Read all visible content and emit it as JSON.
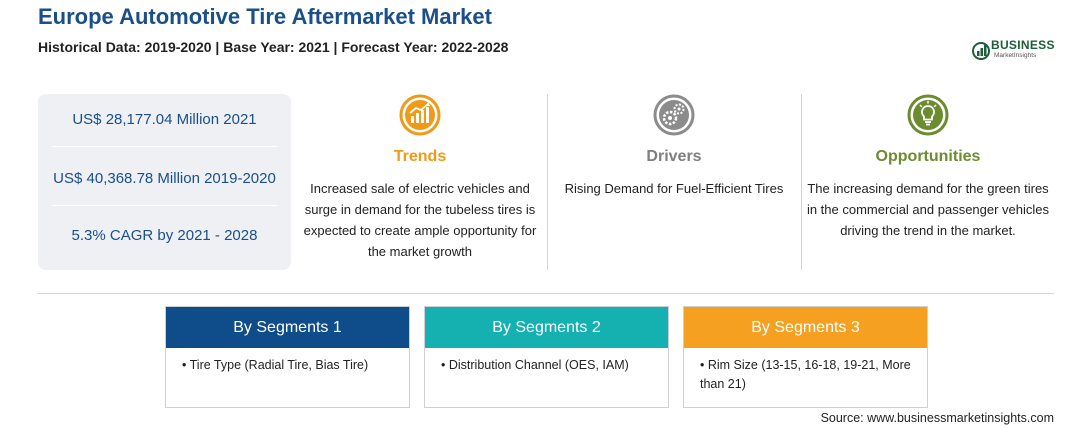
{
  "header": {
    "title": "Europe Automotive Tire Aftermarket Market",
    "subtitle": "Historical Data: 2019-2020 | Base Year: 2021 | Forecast Year: 2022-2028"
  },
  "logo": {
    "name": "BUSINESS",
    "tagline": "MarketInsights",
    "color": "#1d5d3a"
  },
  "stats": [
    {
      "text": "US$ 28,177.04 Million 2021"
    },
    {
      "text": "US$ 40,368.78 Million 2019-2020"
    },
    {
      "text": "5.3% CAGR by 2021 - 2028"
    }
  ],
  "columns": [
    {
      "icon": "growth-chart-icon",
      "heading": "Trends",
      "color": "#f09a17",
      "text": "Increased sale of electric vehicles and surge in demand for the tubeless tires is expected to create ample opportunity for the market growth"
    },
    {
      "icon": "gears-icon",
      "heading": "Drivers",
      "color": "#7f7f7f",
      "text": "Rising Demand for Fuel-Efficient Tires"
    },
    {
      "icon": "lightbulb-icon",
      "heading": "Opportunities",
      "color": "#6b8c2f",
      "text": "The increasing demand for the green tires in the commercial and passenger vehicles driving the trend in the market."
    }
  ],
  "segments": [
    {
      "title": "By Segments 1",
      "color": "#0f4c8a",
      "item": "• Tire Type (Radial Tire, Bias Tire)"
    },
    {
      "title": "By Segments 2",
      "color": "#15b0b0",
      "item": "• Distribution Channel (OES, IAM)"
    },
    {
      "title": "By Segments 3",
      "color": "#f5a020",
      "item": "• Rim Size (13-15, 16-18, 19-21, More than 21)"
    }
  ],
  "source": "Source: www.businessmarketinsights.com"
}
